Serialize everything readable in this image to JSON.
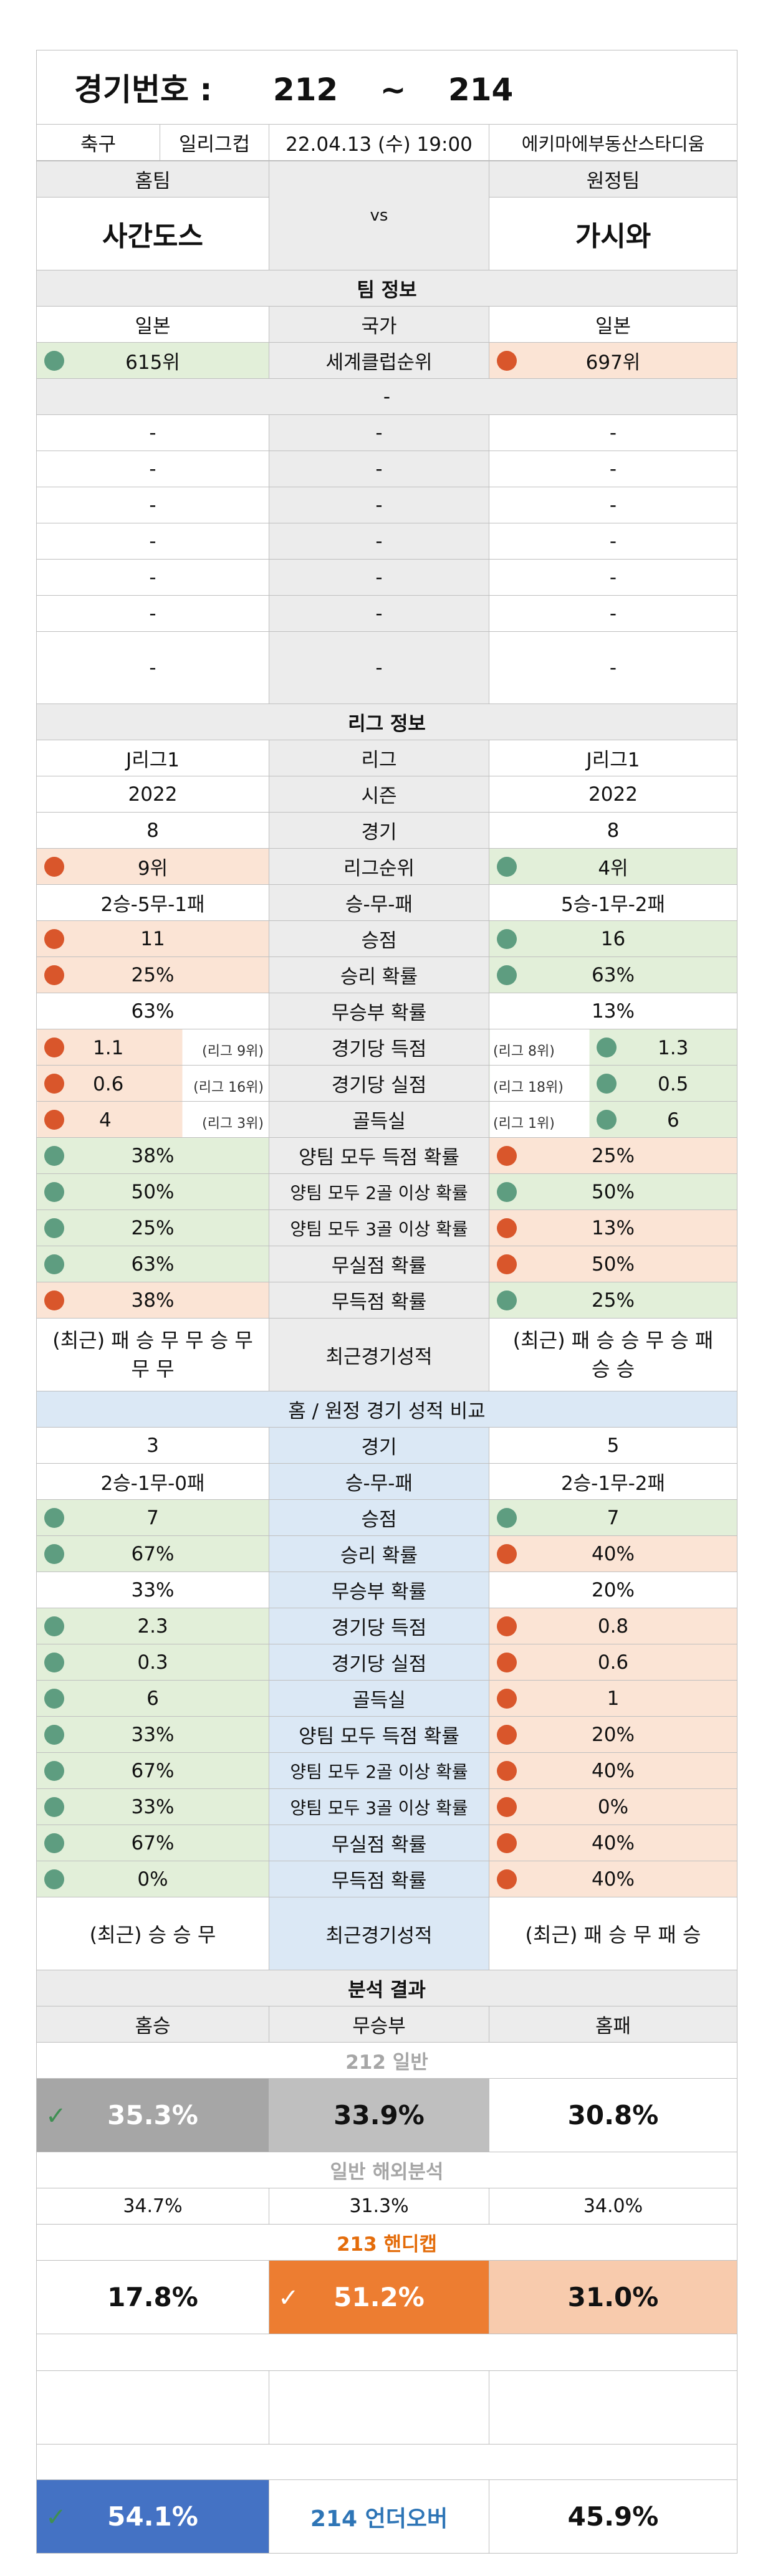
{
  "header": {
    "label": "경기번호 :",
    "from": "212",
    "sep": "~",
    "to": "214"
  },
  "match": {
    "sport": "축구",
    "league": "일리그컵",
    "datetime": "22.04.13 (수) 19:00",
    "venue": "에키마에부동산스타디움"
  },
  "teams": {
    "home_label": "홈팀",
    "away_label": "원정팀",
    "home": "사간도스",
    "vs": "vs",
    "away": "가시와"
  },
  "team_info": {
    "title": "팀 정보",
    "country": {
      "home": "일본",
      "label": "국가",
      "away": "일본"
    },
    "club_rank": {
      "home": "615위",
      "label": "세계클럽순위",
      "away": "697위"
    },
    "dash": "-"
  },
  "league_info": {
    "title": "리그 정보",
    "rows": [
      {
        "home": "J리그1",
        "label": "리그",
        "away": "J리그1"
      },
      {
        "home": "2022",
        "label": "시즌",
        "away": "2022"
      },
      {
        "home": "8",
        "label": "경기",
        "away": "8"
      },
      {
        "home": "9위",
        "label": "리그순위",
        "away": "4위"
      },
      {
        "home": "2승-5무-1패",
        "label": "승-무-패",
        "away": "5승-1무-2패"
      },
      {
        "home": "11",
        "label": "승점",
        "away": "16"
      },
      {
        "home": "25%",
        "label": "승리 확률",
        "away": "63%"
      },
      {
        "home": "63%",
        "label": "무승부 확률",
        "away": "13%"
      }
    ],
    "rank_rows": [
      {
        "home": "1.1",
        "home_rank": "(리그 9위)",
        "label": "경기당 득점",
        "away_rank": "(리그 8위)",
        "away": "1.3"
      },
      {
        "home": "0.6",
        "home_rank": "(리그 16위)",
        "label": "경기당 실점",
        "away_rank": "(리그 18위)",
        "away": "0.5"
      },
      {
        "home": "4",
        "home_rank": "(리그 3위)",
        "label": "골득실",
        "away_rank": "(리그 1위)",
        "away": "6"
      }
    ],
    "prob_rows": [
      {
        "home": "38%",
        "label": "양팀 모두 득점 확률",
        "away": "25%"
      },
      {
        "home": "50%",
        "label": "양팀 모두 2골 이상 확률",
        "away": "50%"
      },
      {
        "home": "25%",
        "label": "양팀 모두 3골 이상 확률",
        "away": "13%"
      },
      {
        "home": "63%",
        "label": "무실점 확률",
        "away": "50%"
      },
      {
        "home": "38%",
        "label": "무득점 확률",
        "away": "25%"
      }
    ],
    "recent": {
      "home": "(최근) 패 승 무 무 승 무 무 무",
      "label": "최근경기성적",
      "away": "(최근) 패 승 승 무 승 패 승 승"
    }
  },
  "homeaway": {
    "title": "홈 / 원정 경기 성적 비교",
    "rows": [
      {
        "home": "3",
        "label": "경기",
        "away": "5"
      },
      {
        "home": "2승-1무-0패",
        "label": "승-무-패",
        "away": "2승-1무-2패"
      },
      {
        "home": "7",
        "label": "승점",
        "away": "7"
      },
      {
        "home": "67%",
        "label": "승리 확률",
        "away": "40%"
      },
      {
        "home": "33%",
        "label": "무승부 확률",
        "away": "20%"
      },
      {
        "home": "2.3",
        "label": "경기당 득점",
        "away": "0.8"
      },
      {
        "home": "0.3",
        "label": "경기당 실점",
        "away": "0.6"
      },
      {
        "home": "6",
        "label": "골득실",
        "away": "1"
      },
      {
        "home": "33%",
        "label": "양팀 모두 득점 확률",
        "away": "20%"
      },
      {
        "home": "67%",
        "label": "양팀 모두 2골 이상 확률",
        "away": "40%"
      },
      {
        "home": "33%",
        "label": "양팀 모두 3골 이상 확률",
        "away": "0%"
      },
      {
        "home": "67%",
        "label": "무실점 확률",
        "away": "40%"
      },
      {
        "home": "0%",
        "label": "무득점 확률",
        "away": "40%"
      }
    ],
    "recent": {
      "home": "(최근) 승 승 무",
      "label": "최근경기성적",
      "away": "(최근) 패 승 무 패 승"
    }
  },
  "analysis": {
    "title": "분석 결과",
    "cols": {
      "win": "홈승",
      "draw": "무승부",
      "lose": "홈패"
    },
    "general_title": "212 일반",
    "general": {
      "win": "35.3%",
      "draw": "33.9%",
      "lose": "30.8%"
    },
    "overseas_title": "일반 해외분석",
    "overseas": {
      "win": "34.7%",
      "draw": "31.3%",
      "lose": "34.0%"
    },
    "handicap_title": "213 핸디캡",
    "handicap": {
      "win": "17.8%",
      "draw": "51.2%",
      "lose": "31.0%"
    },
    "underover": {
      "under": "54.1%",
      "title": "214 언더오버",
      "over": "45.9%"
    }
  },
  "colors": {
    "favor": "#e2efd9",
    "unfavor": "#fbe4d5",
    "favor_dot": "#5e9d80",
    "unfavor_dot": "#d9562b",
    "blue": "#4472c4",
    "orange": "#ed7d31"
  },
  "icons": {
    "favor": "green-circle-icon",
    "unfavor": "red-circle-icon",
    "pick": "checkmark-icon"
  }
}
